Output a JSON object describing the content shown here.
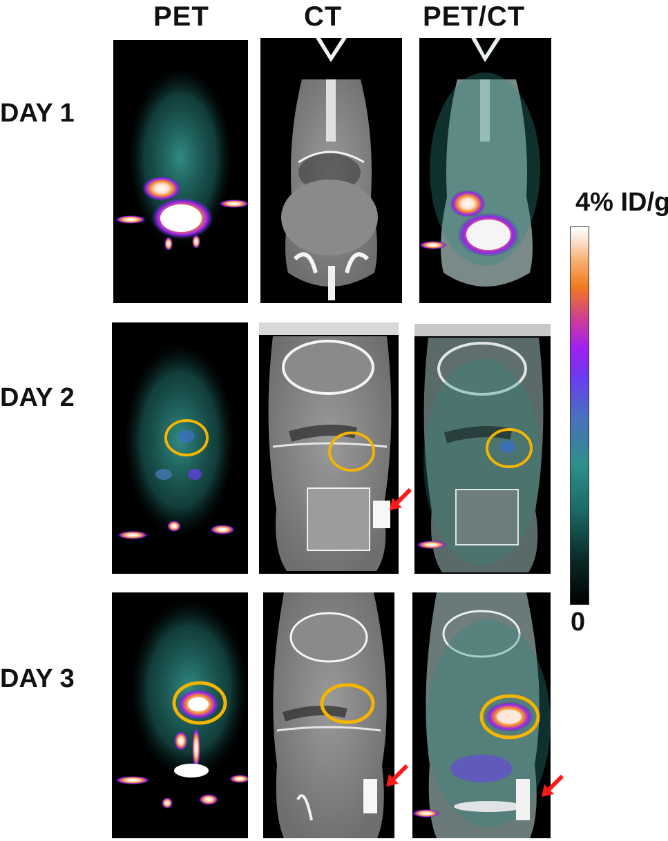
{
  "columns": [
    "PET",
    "CT",
    "PET/CT"
  ],
  "rows": [
    "DAY 1",
    "DAY 2",
    "DAY 3"
  ],
  "colorbar": {
    "max_label": "4% ID/g",
    "min_label": "0",
    "stops": [
      "#000000",
      "#0a2a28",
      "#1b6a66",
      "#2f8f8a",
      "#4a6fc0",
      "#6a3cf0",
      "#a020f0",
      "#d04090",
      "#f07820",
      "#f7b070",
      "#fbe8d8",
      "#ffffff"
    ]
  },
  "colors": {
    "roi_circle": "#f5b400",
    "arrow": "#ff1a1a",
    "pet_uptake": "#2c8a82"
  }
}
